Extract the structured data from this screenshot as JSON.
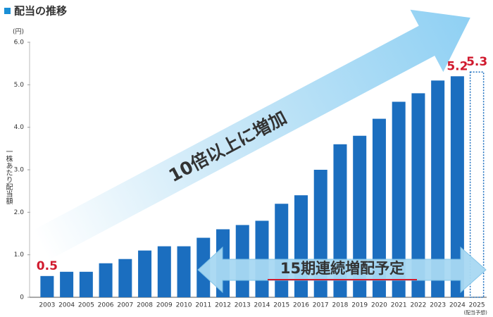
{
  "chart_data": {
    "type": "bar",
    "title": "配当の推移",
    "y_unit": "(円)",
    "y_label": "一株あたり配当額",
    "categories": [
      "2003",
      "2004",
      "2005",
      "2006",
      "2007",
      "2008",
      "2009",
      "2010",
      "2011",
      "2012",
      "2013",
      "2014",
      "2015",
      "2016",
      "2017",
      "2018",
      "2019",
      "2020",
      "2021",
      "2022",
      "2023",
      "2024",
      "2025"
    ],
    "values": [
      0.5,
      0.6,
      0.6,
      0.8,
      0.9,
      1.1,
      1.2,
      1.2,
      1.4,
      1.6,
      1.7,
      1.8,
      2.2,
      2.4,
      3.0,
      3.6,
      3.8,
      4.2,
      4.6,
      4.8,
      5.1,
      5.2,
      5.3
    ],
    "value_labels": [
      "0.5",
      null,
      null,
      null,
      null,
      null,
      null,
      null,
      null,
      null,
      null,
      null,
      null,
      null,
      null,
      null,
      null,
      null,
      null,
      null,
      null,
      "5.2",
      "5.3"
    ],
    "forecast_note": "(配当予想)",
    "dashed_last": true,
    "color": "#1b6ebf",
    "label_color": "#d01a2e",
    "ylim": [
      0,
      6
    ],
    "yticks": [
      0,
      {
        "value": 1,
        "label": "1.0"
      },
      {
        "value": 2,
        "label": "2.0"
      },
      {
        "value": 3,
        "label": "3.0"
      },
      {
        "value": 4,
        "label": "4.0"
      },
      {
        "value": 5,
        "label": "5.0"
      },
      {
        "value": 6,
        "label": "6.0"
      }
    ],
    "grid": false,
    "annotations": [
      "10倍以上に増加",
      "15期連続増配予定"
    ]
  }
}
